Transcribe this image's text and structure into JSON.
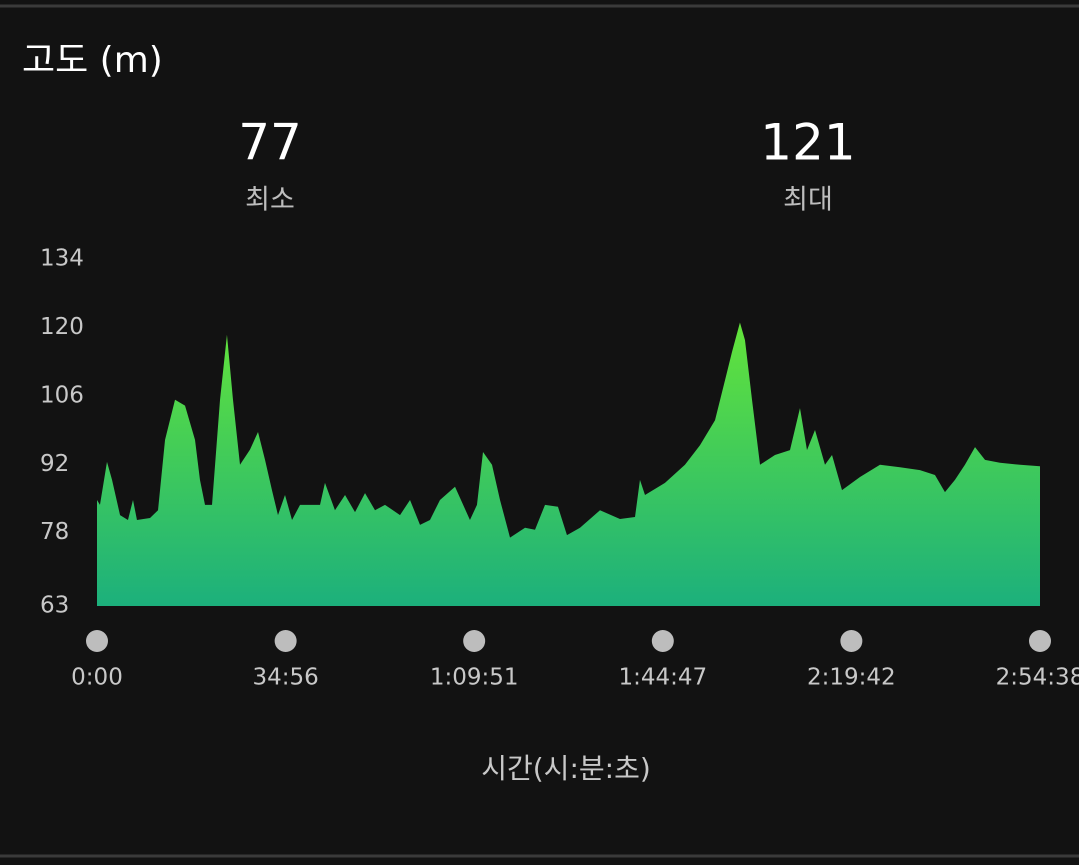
{
  "chart_data": {
    "type": "area",
    "title": "고도 (m)",
    "summary": [
      {
        "value": 77,
        "label": "최소"
      },
      {
        "value": 121,
        "label": "최대"
      }
    ],
    "x_label": "시간(시:분:초)",
    "colors": [
      "#63e43a",
      "#1cb07c"
    ],
    "xlim": [
      0,
      10478
    ],
    "xticks": [
      {
        "value": 0,
        "label": "0:00"
      },
      {
        "value": 2096,
        "label": "34:56"
      },
      {
        "value": 4191,
        "label": "1:09:51"
      },
      {
        "value": 6287,
        "label": "1:44:47"
      },
      {
        "value": 8382,
        "label": "2:19:42"
      },
      {
        "value": 10478,
        "label": "2:54:38"
      }
    ],
    "ylim": [
      63,
      134
    ],
    "yticks": [
      63,
      78,
      92,
      106,
      120,
      134
    ],
    "x": [
      0,
      33,
      111,
      167,
      256,
      344,
      400,
      444,
      589,
      678,
      756,
      867,
      978,
      1089,
      1144,
      1200,
      1278,
      1367,
      1444,
      1511,
      1589,
      1700,
      1789,
      1867,
      1944,
      2011,
      2089,
      2167,
      2256,
      2478,
      2533,
      2644,
      2756,
      2867,
      2978,
      3089,
      3200,
      3367,
      3478,
      3589,
      3700,
      3811,
      3978,
      4144,
      4222,
      4289,
      4389,
      4478,
      4589,
      4756,
      4867,
      4978,
      5122,
      5222,
      5367,
      5589,
      5811,
      5978,
      6033,
      6089,
      6311,
      6533,
      6700,
      6867,
      6978,
      7056,
      7144,
      7200,
      7278,
      7367,
      7533,
      7700,
      7811,
      7889,
      7978,
      8089,
      8167,
      8278,
      8478,
      8700,
      8922,
      9144,
      9311,
      9422,
      9533,
      9644,
      9756,
      9867,
      10033,
      10256,
      10478
    ],
    "values": [
      84.7,
      83.7,
      92.5,
      88.8,
      81.6,
      80.6,
      84.7,
      80.6,
      81,
      82.6,
      97,
      105.2,
      104,
      97,
      88.8,
      83.7,
      83.7,
      105.2,
      118.5,
      105.2,
      91.9,
      95,
      98.6,
      92.9,
      86.7,
      81.6,
      85.7,
      80.6,
      83.7,
      83.7,
      88.2,
      82.6,
      85.7,
      82.2,
      86.1,
      82.6,
      83.7,
      81.6,
      84.7,
      79.6,
      80.6,
      84.7,
      87.4,
      80.6,
      83.7,
      94.5,
      91.9,
      84.7,
      77,
      79,
      78.6,
      83.7,
      83.3,
      77.5,
      79,
      82.6,
      80.8,
      81.2,
      88.8,
      85.7,
      88.2,
      91.9,
      95.9,
      101,
      109.2,
      115,
      121,
      117.4,
      105.2,
      91.9,
      93.9,
      94.9,
      103.5,
      94.9,
      99,
      91.9,
      93.9,
      86.7,
      89.4,
      91.9,
      91.4,
      90.8,
      89.8,
      86.3,
      88.8,
      91.9,
      95.5,
      92.9,
      92.3,
      91.9,
      91.6
    ]
  }
}
